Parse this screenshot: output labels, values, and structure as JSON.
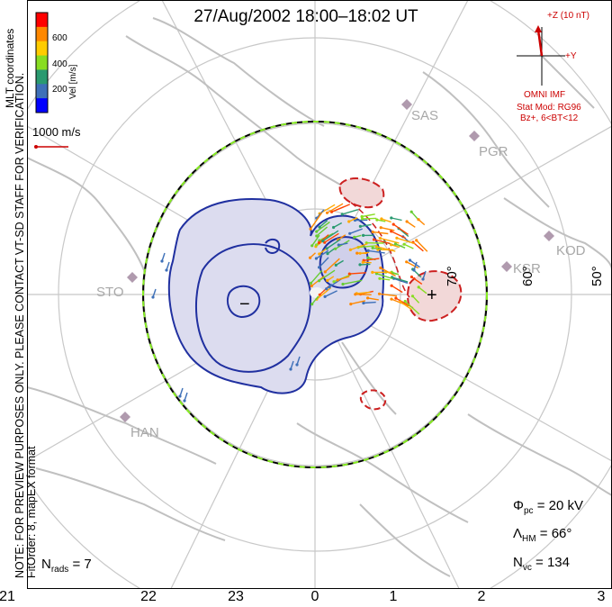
{
  "title": "27/Aug/2002 18:00–18:02 UT",
  "note": {
    "line1": "NOTE: FOR PREVIEW PURPOSES ONLY. PLEASE CONTACT VT-SD STAFF FOR VERIFICATION.",
    "line2": "FitOrder: 8, mapEX format"
  },
  "coord_label": "MLT coordinates",
  "colorbar": {
    "label": "Vel [m/s]",
    "ticks": [
      "600",
      "400",
      "200"
    ],
    "colors": [
      "#ff0000",
      "#ff8800",
      "#ffcc00",
      "#88dd22",
      "#2a9a70",
      "#3e70b8",
      "#0000ff"
    ]
  },
  "ref_vector": "1000 m/s",
  "imf": {
    "z_label": "+Z (10 nT)",
    "y_label": "+Y",
    "source": "OMNI IMF",
    "model": "Stat Mod: RG96",
    "condition": "Bz+, 6<BT<12"
  },
  "mlt_ticks": [
    "21",
    "22",
    "23",
    "0",
    "1",
    "2",
    "3"
  ],
  "lat_labels": [
    "70°",
    "60°",
    "50°"
  ],
  "stations": [
    "SAS",
    "PGR",
    "KOD",
    "KSR",
    "STO",
    "HAN"
  ],
  "stats": {
    "phi_pc": "Φ",
    "phi_sub": "pc",
    "phi_val": " = 20 kV",
    "lambda": "Λ",
    "lambda_sub": "HM",
    "lambda_val": " = 66°",
    "nvc": "N",
    "nvc_sub": "vc",
    "nvc_val": " = 134",
    "nrads": "N",
    "nrads_sub": "rads",
    "nrads_val": " = 7"
  },
  "symbols": {
    "min": "−",
    "max": "+"
  },
  "colors": {
    "pos_contour": "#cc2020",
    "neg_contour": "#2030a0",
    "neg_fill": "#dcdcef",
    "pos_fill": "#f2d8d8",
    "grid": "#c8c8c8",
    "coast": "#c0c0c0",
    "station": "#b09aae"
  }
}
